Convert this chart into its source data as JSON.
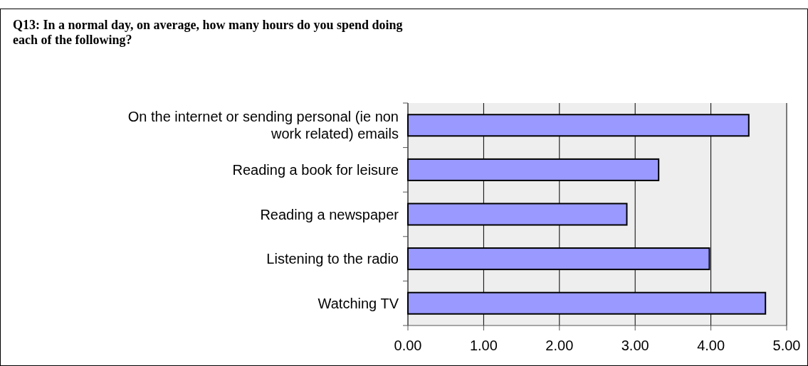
{
  "chart_data": {
    "type": "bar",
    "orientation": "horizontal",
    "title": "Q13: In a normal day, on average, how many hours do you spend doing each of the following?",
    "categories": [
      "On the internet or sending personal (ie non work related) emails",
      "Reading a book for leisure",
      "Reading a newspaper",
      "Listening to the radio",
      "Watching TV"
    ],
    "values": [
      4.5,
      3.31,
      2.89,
      3.98,
      4.72
    ],
    "color": "#9999ff",
    "xlim": [
      0,
      5
    ],
    "xticks": [
      {
        "value": 0,
        "label": "0.00"
      },
      {
        "value": 1,
        "label": "1.00"
      },
      {
        "value": 2,
        "label": "2.00"
      },
      {
        "value": 3,
        "label": "3.00"
      },
      {
        "value": 4,
        "label": "4.00"
      },
      {
        "value": 5,
        "label": "5.00"
      }
    ],
    "grid": "x"
  }
}
